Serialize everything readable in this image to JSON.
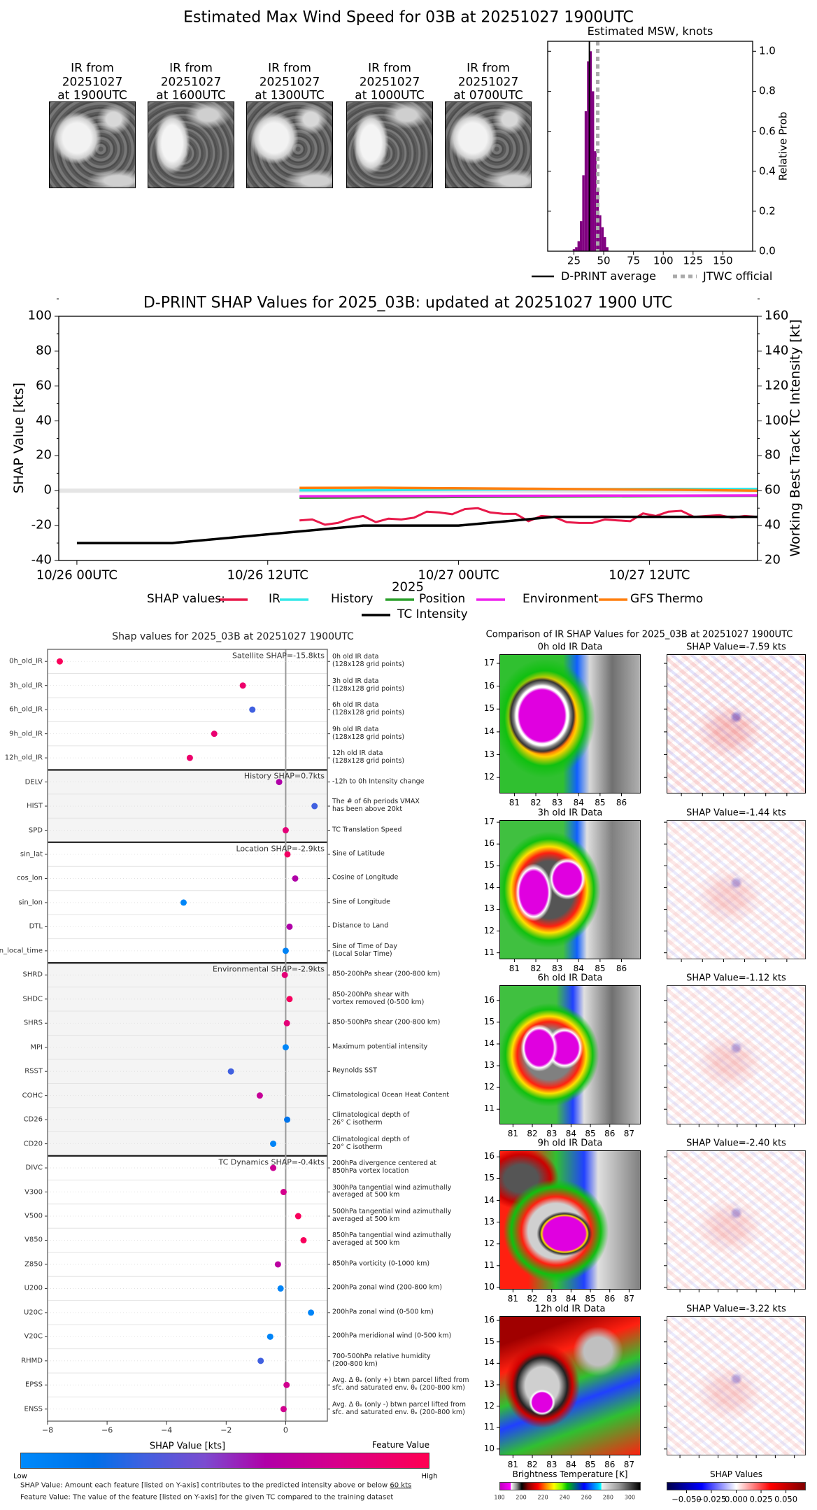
{
  "header": {
    "title": "Estimated Max Wind Speed for 03B at 20251027 1900UTC"
  },
  "ir_thumbnails": [
    {
      "label": "IR from\n20251027\nat 1900UTC"
    },
    {
      "label": "IR from\n20251027\nat 1600UTC"
    },
    {
      "label": "IR from\n20251027\nat 1300UTC"
    },
    {
      "label": "IR from\n20251027\nat 1000UTC"
    },
    {
      "label": "IR from\n20251027\nat 0700UTC"
    }
  ],
  "colors": {
    "histogram": "#800080",
    "ir": "#e8194a",
    "history": "#33e8e8",
    "position": "#2ca02c",
    "environment": "#ee22ee",
    "gfs_thermo": "#ff7f0e",
    "tc_intensity": "#000000",
    "jtwc": "#aaaaaa"
  },
  "chart_data": [
    {
      "type": "bar",
      "title": "Estimated MSW, knots",
      "ylabel": "Relative Prob",
      "xlim": [
        3,
        175
      ],
      "ylim": [
        0,
        1.05
      ],
      "xticks": [
        25,
        50,
        75,
        100,
        125,
        150
      ],
      "yticks": [
        0.0,
        0.2,
        0.4,
        0.6,
        0.8,
        1.0
      ],
      "bin_width": 2,
      "bin_centers": [
        25,
        27,
        29,
        31,
        33,
        35,
        37,
        39,
        41,
        43,
        45,
        47,
        49,
        51,
        53
      ],
      "values": [
        0.01,
        0.02,
        0.05,
        0.15,
        0.38,
        0.7,
        0.95,
        1.0,
        0.8,
        0.5,
        0.3,
        0.18,
        0.12,
        0.07,
        0.02
      ],
      "dprint_average": 38,
      "jtwc_official": 45,
      "legend": {
        "dprint": "D-PRINT average",
        "jtwc": "JTWC official"
      }
    },
    {
      "type": "line",
      "title": "D-PRINT SHAP Values for 2025_03B: updated at 20251027 1900 UTC",
      "xlabel": "2025",
      "ylabel": "SHAP Value [kts]",
      "ylabel_right": "Working Best Track TC Intensity [kt]",
      "x_unit": "hours since 10/26 00UTC",
      "xlim": [
        -1.14,
        42.8
      ],
      "ylim": [
        -40,
        100
      ],
      "ylim_right": [
        20,
        160
      ],
      "xticks": [
        {
          "x": 0,
          "label": "10/26 00UTC"
        },
        {
          "x": 12,
          "label": "10/26 12UTC"
        },
        {
          "x": 24,
          "label": "10/27 00UTC"
        },
        {
          "x": 36,
          "label": "10/27 12UTC"
        }
      ],
      "yticks": [
        -40,
        -20,
        0,
        20,
        40,
        60,
        80,
        100
      ],
      "yticks_right": [
        20,
        40,
        60,
        80,
        100,
        120,
        140,
        160
      ],
      "legend_title": "SHAP values:",
      "series": [
        {
          "name": "IR",
          "key": "ir",
          "x_start": 14,
          "x_step": 0.8,
          "values": [
            -17,
            -16.5,
            -19.5,
            -18.5,
            -16,
            -14.5,
            -18,
            -16,
            -16.5,
            -15.5,
            -12,
            -12.5,
            -13.5,
            -10.5,
            -10,
            -12.5,
            -13.2,
            -13.3,
            -17.5,
            -14.5,
            -15,
            -18,
            -18.5,
            -18.5,
            -16.5,
            -17,
            -17.5,
            -13,
            -14.5,
            -12,
            -11.5,
            -15,
            -14.5,
            -14,
            -15.5,
            -14.5,
            -15
          ]
        },
        {
          "name": "History",
          "key": "history",
          "x_start": 14,
          "x_step": 4.8,
          "values": [
            0.2,
            0.3,
            0.6,
            0.8,
            0.9,
            1.0,
            1.0
          ]
        },
        {
          "name": "Position",
          "key": "position",
          "x_start": 14,
          "x_step": 4.8,
          "values": [
            -4.0,
            -3.8,
            -3.6,
            -3.4,
            -3.2,
            -3.0,
            -2.9
          ]
        },
        {
          "name": "Environment",
          "key": "environment",
          "x_start": 14,
          "x_step": 4.8,
          "values": [
            -3.2,
            -3.1,
            -3.0,
            -2.9,
            -2.8,
            -2.8,
            -2.7
          ]
        },
        {
          "name": "GFS Thermo",
          "key": "gfs_thermo",
          "x_start": 14,
          "x_step": 4.8,
          "values": [
            1.6,
            1.7,
            1.4,
            1.1,
            0.8,
            0.5,
            0.0
          ]
        }
      ],
      "tc_intensity": {
        "name": "TC Intensity",
        "x": [
          0,
          6,
          18,
          24,
          30,
          42.8
        ],
        "values": [
          30,
          30,
          40,
          40,
          45,
          45
        ]
      }
    },
    {
      "type": "scatter",
      "title": "Shap values for 2025_03B at 20251027 1900UTC",
      "xlabel": "SHAP Value [kts]",
      "xlim": [
        -8,
        1.4
      ],
      "xticks": [
        -8,
        -6,
        -4,
        -2,
        0
      ],
      "xtick_labels": [
        "−8",
        "−6",
        "−4",
        "−2",
        "0"
      ],
      "groups": [
        {
          "label": "Satellite SHAP=-15.8kts",
          "count": 5
        },
        {
          "label": "History SHAP=0.7kts",
          "count": 3
        },
        {
          "label": "Location SHAP=-2.9kts",
          "count": 5
        },
        {
          "label": "Environmental SHAP=-2.9kts",
          "count": 8
        },
        {
          "label": "TC Dynamics SHAP=-0.4kts",
          "count": 11
        }
      ],
      "features": [
        {
          "name": "0h_old_IR",
          "desc": "0h old IR data\n(128x128 grid points)",
          "shap": -7.59,
          "feature_value": 0.97
        },
        {
          "name": "3h_old_IR",
          "desc": "3h old IR data\n(128x128 grid points)",
          "shap": -1.44,
          "feature_value": 0.9
        },
        {
          "name": "6h_old_IR",
          "desc": "6h old IR data\n(128x128 grid points)",
          "shap": -1.12,
          "feature_value": 0.3
        },
        {
          "name": "9h_old_IR",
          "desc": "9h old IR data\n(128x128 grid points)",
          "shap": -2.4,
          "feature_value": 0.88
        },
        {
          "name": "12h_old_IR",
          "desc": "12h old IR data\n(128x128 grid points)",
          "shap": -3.22,
          "feature_value": 0.9
        },
        {
          "name": "DELV",
          "desc": "-12h to 0h Intensity change",
          "shap": -0.22,
          "feature_value": 0.6
        },
        {
          "name": "HIST",
          "desc": "The # of 6h periods VMAX\nhas been above 20kt",
          "shap": 0.97,
          "feature_value": 0.3
        },
        {
          "name": "SPD",
          "desc": "TC Translation Speed",
          "shap": 0.0,
          "feature_value": 0.85
        },
        {
          "name": "sin_lat",
          "desc": "Sine of Latitude",
          "shap": 0.06,
          "feature_value": 0.93
        },
        {
          "name": "cos_lon",
          "desc": "Cosine of Longitude",
          "shap": 0.32,
          "feature_value": 0.6
        },
        {
          "name": "sin_lon",
          "desc": "Sine of Longitude",
          "shap": -3.43,
          "feature_value": 0.03
        },
        {
          "name": "DTL",
          "desc": "Distance to Land",
          "shap": 0.13,
          "feature_value": 0.6
        },
        {
          "name": "sin_local_time",
          "desc": "Sine of Time of Day\n(Local Solar Time)",
          "shap": 0.0,
          "feature_value": 0.05
        },
        {
          "name": "SHRD",
          "desc": "850-200hPa shear (200-800 km)",
          "shap": -0.03,
          "feature_value": 0.85
        },
        {
          "name": "SHDC",
          "desc": "850-200hPa shear with\nvortex removed (0-500 km)",
          "shap": 0.13,
          "feature_value": 0.95
        },
        {
          "name": "SHRS",
          "desc": "850-500hPa shear (200-800 km)",
          "shap": 0.04,
          "feature_value": 0.85
        },
        {
          "name": "MPI",
          "desc": "Maximum potential intensity",
          "shap": 0.0,
          "feature_value": 0.03
        },
        {
          "name": "RSST",
          "desc": "Reynolds SST",
          "shap": -1.84,
          "feature_value": 0.3
        },
        {
          "name": "COHC",
          "desc": "Climatological Ocean Heat Content",
          "shap": -0.87,
          "feature_value": 0.7
        },
        {
          "name": "CD26",
          "desc": "Climatological depth of\n26° C isotherm",
          "shap": 0.05,
          "feature_value": 0.15
        },
        {
          "name": "CD20",
          "desc": "Climatological depth of\n20° C isotherm",
          "shap": -0.42,
          "feature_value": 0.05
        },
        {
          "name": "DIVC",
          "desc": "200hPa divergence centered at\n850hPa vortex location",
          "shap": -0.42,
          "feature_value": 0.72
        },
        {
          "name": "V300",
          "desc": "300hPa tangential wind azimuthally\naveraged at 500 km",
          "shap": -0.07,
          "feature_value": 0.76
        },
        {
          "name": "V500",
          "desc": "500hPa tangential wind azimuthally\naveraged at 500 km",
          "shap": 0.42,
          "feature_value": 0.96
        },
        {
          "name": "V850",
          "desc": "850hPa tangential wind azimuthally\naveraged at 500 km",
          "shap": 0.6,
          "feature_value": 0.96
        },
        {
          "name": "Z850",
          "desc": "850hPa vorticity (0-1000 km)",
          "shap": -0.26,
          "feature_value": 0.65
        },
        {
          "name": "U200",
          "desc": "200hPa zonal wind (200-800 km)",
          "shap": -0.17,
          "feature_value": 0.04
        },
        {
          "name": "U20C",
          "desc": "200hPa zonal wind (0-500 km)",
          "shap": 0.85,
          "feature_value": 0.04
        },
        {
          "name": "V20C",
          "desc": "200hPa meridional wind (0-500 km)",
          "shap": -0.52,
          "feature_value": 0.04
        },
        {
          "name": "RHMD",
          "desc": "700-500hPa relative humidity\n(200-800 km)",
          "shap": -0.84,
          "feature_value": 0.3
        },
        {
          "name": "EPSS",
          "desc": "Avg. Δ θₑ (only +) btwn parcel lifted from\nsfc. and saturated env. θₑ (200-800 km)",
          "shap": 0.03,
          "feature_value": 0.75
        },
        {
          "name": "ENSS",
          "desc": "Avg. Δ θₑ (only -) btwn parcel lifted from\nsfc. and saturated env. θₑ (200-800 km)",
          "shap": -0.07,
          "feature_value": 0.75
        }
      ],
      "colorbar": {
        "title": "Feature Value",
        "low": "Low",
        "high": "High"
      },
      "footer": {
        "line1_prefix": "SHAP Value: Amount each feature [listed on Y-axis] contributes to the predicted intensity above or below ",
        "line1_value": "60 kts",
        "line2": "Feature Value: The value of the feature [listed on Y-axis] for the given TC compared to the training dataset"
      }
    }
  ],
  "ir_comparison": {
    "title": "Comparison of IR SHAP Values for 2025_03B at 20251027 1900UTC",
    "rows": [
      {
        "ir_title": "0h old IR Data",
        "shap_title": "SHAP Value=-7.59 kts",
        "lat_range": [
          11.3,
          17.4
        ],
        "lon_range": [
          80.3,
          86.9
        ],
        "yticks": [
          12,
          13,
          14,
          15,
          16,
          17
        ],
        "xticks": [
          81,
          82,
          83,
          84,
          85,
          86
        ]
      },
      {
        "ir_title": "3h old IR Data",
        "shap_title": "SHAP Value=-1.44 kts",
        "lat_range": [
          10.7,
          17.1
        ],
        "lon_range": [
          80.3,
          86.9
        ],
        "yticks": [
          11,
          12,
          13,
          14,
          15,
          16,
          17
        ],
        "xticks": [
          81,
          82,
          83,
          84,
          85,
          86
        ]
      },
      {
        "ir_title": "6h old IR Data",
        "shap_title": "SHAP Value=-1.12 kts",
        "lat_range": [
          10.3,
          16.7
        ],
        "lon_range": [
          80.3,
          87.6
        ],
        "yticks": [
          11,
          12,
          13,
          14,
          15,
          16
        ],
        "xticks": [
          81,
          82,
          83,
          84,
          85,
          86,
          87
        ]
      },
      {
        "ir_title": "9h old IR Data",
        "shap_title": "SHAP Value=-2.40 kts",
        "lat_range": [
          9.9,
          16.3
        ],
        "lon_range": [
          80.3,
          87.6
        ],
        "yticks": [
          10,
          11,
          12,
          13,
          14,
          15,
          16
        ],
        "xticks": [
          81,
          82,
          83,
          84,
          85,
          86,
          87
        ]
      },
      {
        "ir_title": "12h old IR Data",
        "shap_title": "SHAP Value=-3.22 kts",
        "lat_range": [
          9.7,
          16.2
        ],
        "lon_range": [
          80.3,
          87.6
        ],
        "yticks": [
          10,
          11,
          12,
          13,
          14,
          15,
          16
        ],
        "xticks": [
          81,
          82,
          83,
          84,
          85,
          86,
          87
        ]
      }
    ],
    "bt_colorbar": {
      "title": "Brightness Temperature [K]",
      "range": [
        180,
        310
      ],
      "ticks": [
        180,
        200,
        220,
        240,
        260,
        280,
        300
      ]
    },
    "shap_colorbar": {
      "title": "SHAP Values",
      "range": [
        -0.07,
        0.07
      ],
      "ticks": [
        -0.05,
        -0.025,
        0.0,
        0.025,
        0.05
      ],
      "tick_labels": [
        "−0.050",
        "−0.025",
        "0.000",
        "0.025",
        "0.050"
      ]
    }
  }
}
